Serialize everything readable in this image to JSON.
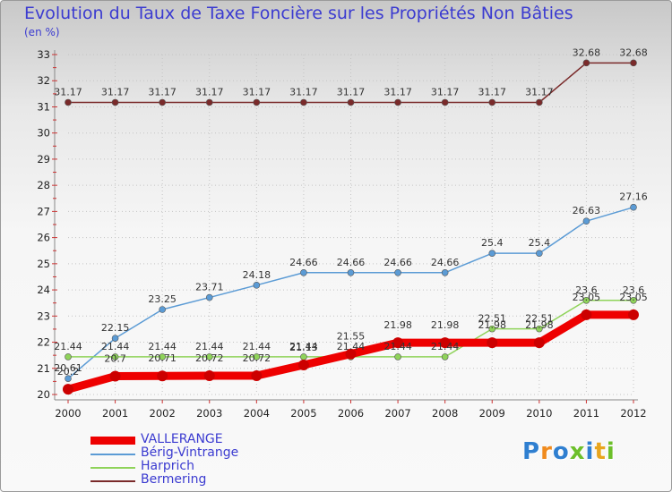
{
  "title": "Evolution du Taux de Taxe Foncière sur les Propriétés Non Bâties",
  "unit": "(en %)",
  "logo": {
    "text": "Proxiti",
    "letter_colors": [
      "#2f7fd0",
      "#f08b1e",
      "#2f7fd0",
      "#6cbf2a",
      "#2f7fd0",
      "#e8a51e",
      "#6cbf2a"
    ]
  },
  "chart_data": {
    "type": "line",
    "title": "Evolution du Taux de Taxe Foncière sur les Propriétés Non Bâties",
    "ylabel": "(en %)",
    "xlabel": "",
    "ylim": [
      20,
      33
    ],
    "yticks": [
      20,
      21,
      22,
      23,
      24,
      25,
      26,
      27,
      28,
      29,
      30,
      31,
      32,
      33
    ],
    "categories": [
      "2000",
      "2001",
      "2002",
      "2003",
      "2004",
      "2005",
      "2006",
      "2007",
      "2008",
      "2009",
      "2010",
      "2011",
      "2012"
    ],
    "series": [
      {
        "name": "VALLERANGE",
        "color": "#ee0000",
        "style": "thick",
        "values": [
          20.2,
          20.7,
          20.71,
          20.72,
          20.72,
          21.13,
          21.55,
          21.98,
          21.98,
          21.98,
          21.98,
          23.05,
          23.05
        ],
        "labels": [
          "20.2",
          "20.7",
          "20.71",
          "20.72",
          "20.72",
          "21.13",
          "21.55",
          "21.98",
          "21.98",
          "21.98",
          "21.98",
          "23.05",
          "23.05"
        ]
      },
      {
        "name": "Bérig-Vintrange",
        "color": "#5b9bd5",
        "style": "thin",
        "values": [
          20.61,
          22.15,
          23.25,
          23.71,
          24.18,
          24.66,
          24.66,
          24.66,
          24.66,
          25.4,
          25.4,
          26.63,
          27.16
        ],
        "labels": [
          "20.61",
          "22.15",
          "23.25",
          "23.71",
          "24.18",
          "24.66",
          "24.66",
          "24.66",
          "24.66",
          "25.4",
          "25.4",
          "26.63",
          "27.16"
        ]
      },
      {
        "name": "Harprich",
        "color": "#8fd35a",
        "style": "thin",
        "values": [
          21.44,
          21.44,
          21.44,
          21.44,
          21.44,
          21.44,
          21.44,
          21.44,
          21.44,
          22.51,
          22.51,
          23.6,
          23.6
        ],
        "labels": [
          "21.44",
          "21.44",
          "21.44",
          "21.44",
          "21.44",
          "21.44",
          "21.44",
          "21.44",
          "21.44",
          "22.51",
          "22.51",
          "23.6",
          "23.6"
        ]
      },
      {
        "name": "Bermering",
        "color": "#7a2a2a",
        "style": "thin",
        "values": [
          31.17,
          31.17,
          31.17,
          31.17,
          31.17,
          31.17,
          31.17,
          31.17,
          31.17,
          31.17,
          31.17,
          32.68,
          32.68
        ],
        "labels": [
          "31.17",
          "31.17",
          "31.17",
          "31.17",
          "31.17",
          "31.17",
          "31.17",
          "31.17",
          "31.17",
          "31.17",
          "31.17",
          "32.68",
          "32.68"
        ]
      }
    ],
    "legend": [
      "VALLERANGE",
      "Bérig-Vintrange",
      "Harprich",
      "Bermering"
    ],
    "legend_position": "bottom-left",
    "grid": true
  }
}
